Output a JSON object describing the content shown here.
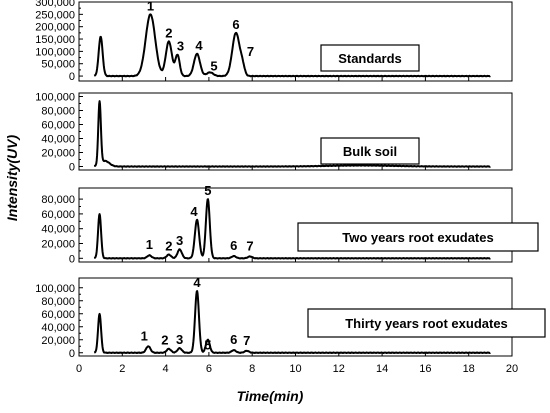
{
  "chart_data": {
    "type": "line",
    "xlabel": "Time(min)",
    "ylabel": "Intensity(UV)",
    "xlim": [
      0,
      20
    ],
    "x_ticks": [
      0,
      2,
      4,
      6,
      8,
      10,
      12,
      14,
      16,
      18,
      20
    ],
    "panels": [
      {
        "title": "Standards",
        "ylim": [
          -20000,
          300000
        ],
        "y_ticks": [
          0,
          50000,
          100000,
          150000,
          200000,
          250000,
          300000
        ],
        "y_tick_labels": [
          "0",
          "50,000",
          "100,000",
          "150,000",
          "200,000",
          "250,000",
          "300,000"
        ],
        "peaks": [
          {
            "t": 1.0,
            "h": 160000,
            "w": 0.09,
            "label": ""
          },
          {
            "t": 3.3,
            "h": 250000,
            "w": 0.22,
            "label": "1"
          },
          {
            "t": 4.15,
            "h": 140000,
            "w": 0.14,
            "label": "2"
          },
          {
            "t": 4.55,
            "h": 85000,
            "w": 0.1,
            "label": "3"
          },
          {
            "t": 5.45,
            "h": 90000,
            "w": 0.14,
            "label": "4"
          },
          {
            "t": 6.05,
            "h": 15000,
            "w": 0.15,
            "label": "5"
          },
          {
            "t": 7.25,
            "h": 175000,
            "w": 0.17,
            "label": "6"
          },
          {
            "t": 7.55,
            "h": 35000,
            "w": 0.1,
            "label": "7"
          }
        ]
      },
      {
        "title": "Bulk soil",
        "ylim": [
          -5000,
          105000
        ],
        "y_ticks": [
          0,
          20000,
          40000,
          60000,
          80000,
          100000
        ],
        "y_tick_labels": [
          "0",
          "20,000",
          "40,000",
          "60,000",
          "80,000",
          "100,000"
        ],
        "peaks": [
          {
            "t": 0.95,
            "h": 90000,
            "w": 0.06,
            "label": ""
          },
          {
            "t": 1.2,
            "h": 8000,
            "w": 0.2,
            "label": ""
          },
          {
            "t": 13.0,
            "h": 1500,
            "w": 1.5,
            "label": ""
          }
        ]
      },
      {
        "title": "Two years root exudates",
        "ylim": [
          -5000,
          95000
        ],
        "y_ticks": [
          0,
          20000,
          40000,
          60000,
          80000
        ],
        "y_tick_labels": [
          "0",
          "20,000",
          "40,000",
          "60,000",
          "80,000"
        ],
        "peaks": [
          {
            "t": 0.95,
            "h": 60000,
            "w": 0.07,
            "label": ""
          },
          {
            "t": 3.25,
            "h": 4000,
            "w": 0.1,
            "label": "1"
          },
          {
            "t": 4.15,
            "h": 5000,
            "w": 0.1,
            "label": "2"
          },
          {
            "t": 4.65,
            "h": 12000,
            "w": 0.1,
            "label": "3"
          },
          {
            "t": 5.45,
            "h": 52000,
            "w": 0.1,
            "label": "4"
          },
          {
            "t": 5.95,
            "h": 80000,
            "w": 0.09,
            "label": "5"
          },
          {
            "t": 7.15,
            "h": 3000,
            "w": 0.1,
            "label": "6"
          },
          {
            "t": 7.9,
            "h": 2500,
            "w": 0.1,
            "label": "7"
          }
        ]
      },
      {
        "title": "Thirty years root exudates",
        "ylim": [
          -5000,
          115000
        ],
        "y_ticks": [
          0,
          20000,
          40000,
          60000,
          80000,
          100000
        ],
        "y_tick_labels": [
          "0",
          "20,000",
          "40,000",
          "60,000",
          "80,000",
          "100,000"
        ],
        "peaks": [
          {
            "t": 0.95,
            "h": 60000,
            "w": 0.07,
            "label": ""
          },
          {
            "t": 3.2,
            "h": 10000,
            "w": 0.1,
            "label": "1"
          },
          {
            "t": 4.15,
            "h": 6000,
            "w": 0.1,
            "label": "2"
          },
          {
            "t": 4.65,
            "h": 7000,
            "w": 0.1,
            "label": "3"
          },
          {
            "t": 5.45,
            "h": 95000,
            "w": 0.09,
            "label": "4"
          },
          {
            "t": 5.95,
            "h": 20000,
            "w": 0.09,
            "label": "5"
          },
          {
            "t": 7.15,
            "h": 4000,
            "w": 0.1,
            "label": "6"
          },
          {
            "t": 7.75,
            "h": 3000,
            "w": 0.1,
            "label": "7"
          }
        ]
      }
    ]
  }
}
